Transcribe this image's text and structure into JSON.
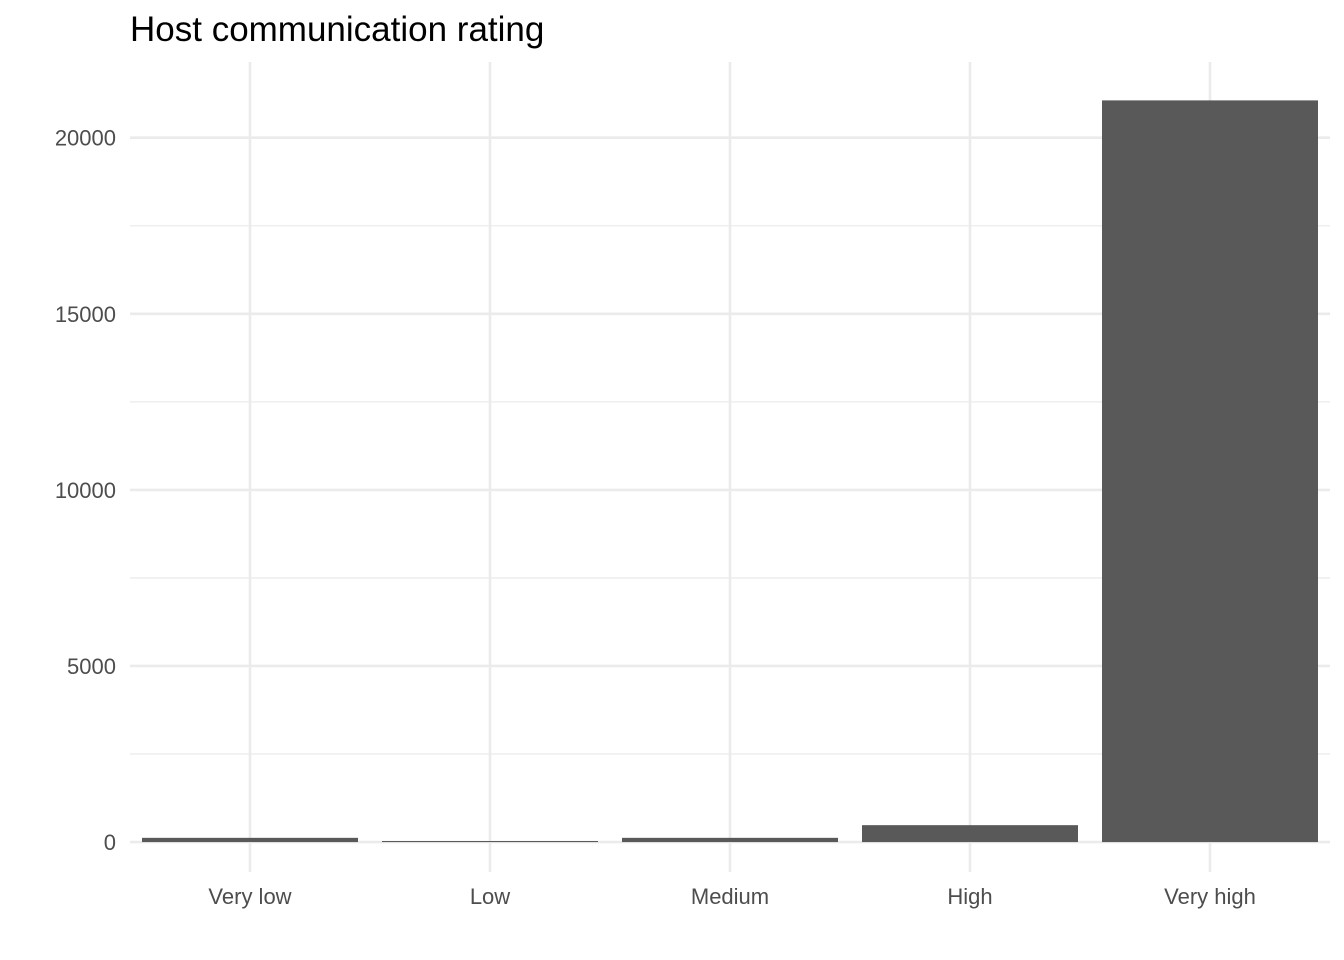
{
  "chart_data": {
    "type": "bar",
    "title": "Host communication rating",
    "xlabel": "",
    "ylabel": "",
    "categories": [
      "Very low",
      "Low",
      "Medium",
      "High",
      "Very high"
    ],
    "values": [
      120,
      30,
      120,
      480,
      21060
    ],
    "ylim": [
      -850,
      22150
    ],
    "yticks": [
      0,
      5000,
      10000,
      15000,
      20000
    ],
    "ytick_labels": [
      "0",
      "5000",
      "10000",
      "15000",
      "20000"
    ],
    "grid": true,
    "legend": "none",
    "bar_color": "#595959"
  }
}
